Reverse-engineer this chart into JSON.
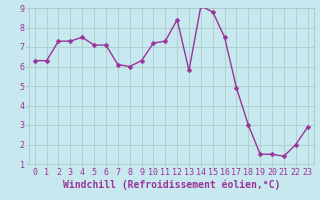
{
  "x": [
    0,
    1,
    2,
    3,
    4,
    5,
    6,
    7,
    8,
    9,
    10,
    11,
    12,
    13,
    14,
    15,
    16,
    17,
    18,
    19,
    20,
    21,
    22,
    23
  ],
  "y": [
    6.3,
    6.3,
    7.3,
    7.3,
    7.5,
    7.1,
    7.1,
    6.1,
    6.0,
    6.3,
    7.2,
    7.3,
    8.4,
    5.8,
    9.1,
    8.8,
    7.5,
    4.9,
    3.0,
    1.5,
    1.5,
    1.4,
    2.0,
    2.9
  ],
  "line_color": "#993399",
  "marker": "D",
  "marker_size": 2.5,
  "line_width": 1.0,
  "xlabel": "Windchill (Refroidissement éolien,°C)",
  "xlabel_fontsize": 7,
  "ylabel": "",
  "xlim": [
    -0.5,
    23.5
  ],
  "ylim": [
    1,
    9
  ],
  "yticks": [
    1,
    2,
    3,
    4,
    5,
    6,
    7,
    8,
    9
  ],
  "xticks": [
    0,
    1,
    2,
    3,
    4,
    5,
    6,
    7,
    8,
    9,
    10,
    11,
    12,
    13,
    14,
    15,
    16,
    17,
    18,
    19,
    20,
    21,
    22,
    23
  ],
  "bg_color": "#c8e8f0",
  "plot_bg_color": "#c8e8f0",
  "grid_color": "#aacccc",
  "tick_fontsize": 6,
  "tick_color": "#993399",
  "label_color": "#993399"
}
